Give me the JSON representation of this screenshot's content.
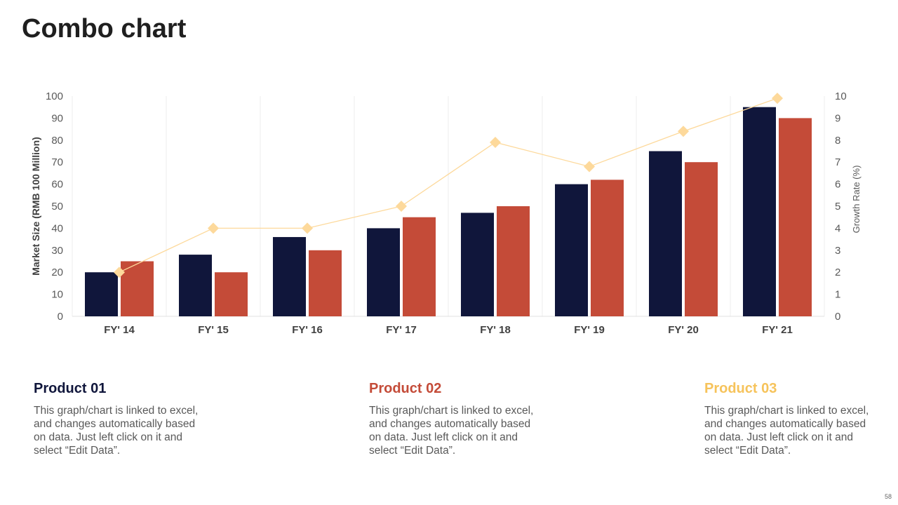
{
  "title": "Combo chart",
  "page_number": "58",
  "colors": {
    "series1": "#10163b",
    "series2": "#c44b38",
    "line": "#fdd99b",
    "product1": "#10163b",
    "product2": "#c44b38",
    "product3": "#f6c35b"
  },
  "chart_data": {
    "type": "bar",
    "categories": [
      "FY' 14",
      "FY' 15",
      "FY' 16",
      "FY' 17",
      "FY' 18",
      "FY' 19",
      "FY' 20",
      "FY' 21"
    ],
    "series": [
      {
        "values": [
          20,
          28,
          36,
          40,
          47,
          60,
          75,
          95
        ],
        "axis": "left",
        "type": "bar"
      },
      {
        "values": [
          25,
          20,
          30,
          45,
          50,
          62,
          70,
          90
        ],
        "axis": "left",
        "type": "bar"
      },
      {
        "values": [
          2,
          4,
          4,
          5,
          7.9,
          6.8,
          8.4,
          9.9
        ],
        "axis": "right",
        "type": "line",
        "marker": "diamond"
      }
    ],
    "ylabel": "Market Size (RMB 100 Million)",
    "ylim": [
      0,
      100
    ],
    "yticks": [
      "0",
      "10",
      "20",
      "30",
      "40",
      "50",
      "60",
      "70",
      "80",
      "90",
      "100"
    ],
    "y2label": "Growth Rate (%)",
    "y2lim": [
      0,
      10
    ],
    "y2ticks": [
      "0",
      "1",
      "2",
      "3",
      "4",
      "5",
      "6",
      "7",
      "8",
      "9",
      "10"
    ],
    "grid": "vertical category separators",
    "legend": "none"
  },
  "products": [
    {
      "title": "Product 01",
      "text": "This graph/chart is linked to excel, and changes automatically based on data. Just left click on it and select “Edit Data”."
    },
    {
      "title": "Product 02",
      "text": "This graph/chart is linked to excel, and changes automatically based on data. Just left click on it and select “Edit Data”."
    },
    {
      "title": "Product 03",
      "text": "This graph/chart is linked to excel, and changes automatically based on data. Just left click on it and select “Edit Data”."
    }
  ]
}
